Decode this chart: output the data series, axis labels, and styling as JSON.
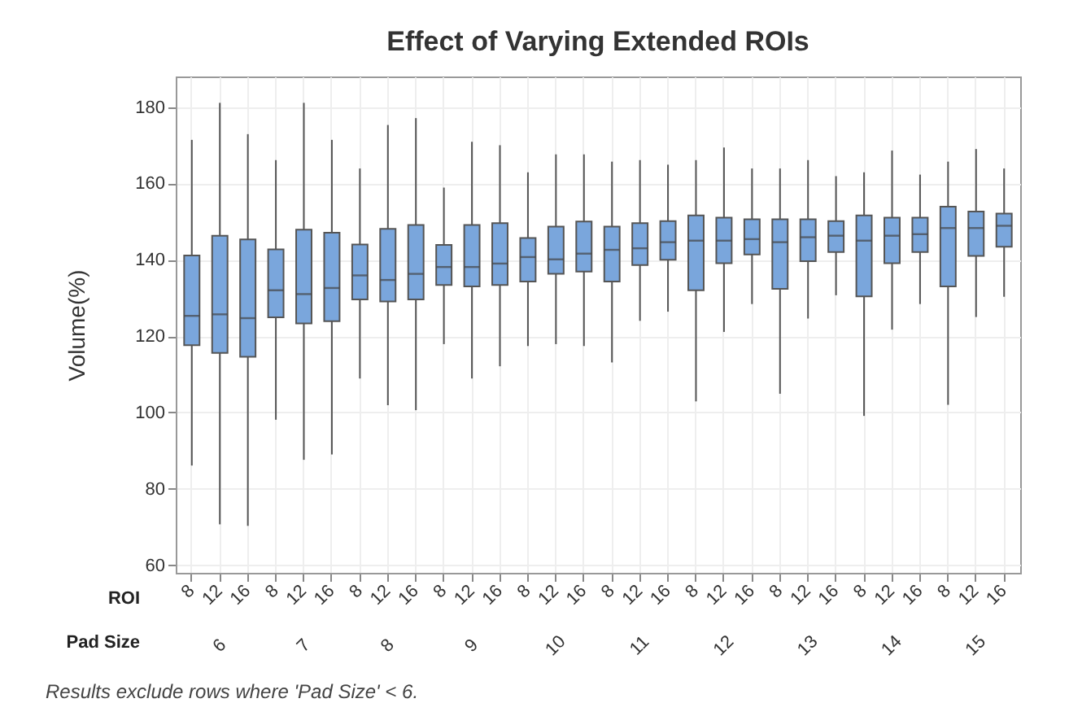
{
  "chart_data": {
    "type": "box",
    "title": "Effect of Varying Extended ROIs",
    "ylabel": "Volume(%)",
    "categories": [
      "8",
      "12",
      "16",
      "8",
      "12",
      "16",
      "8",
      "12",
      "16",
      "8",
      "12",
      "16",
      "8",
      "12",
      "16",
      "8",
      "12",
      "16",
      "8",
      "12",
      "16",
      "8",
      "12",
      "16",
      "8",
      "12",
      "16",
      "8",
      "12",
      "16"
    ],
    "ylim": [
      58,
      188
    ],
    "yticks": [
      60,
      80,
      100,
      120,
      140,
      160,
      180
    ],
    "grid": true,
    "annotations": [
      "ROI",
      "Pad Size",
      "6",
      "7",
      "8",
      "9",
      "10",
      "11",
      "12",
      "13",
      "14",
      "15",
      "Results exclude rows where  'Pad Size'  < 6."
    ],
    "series": [
      {
        "color": "#7aa6dc",
        "boxes": [
          {
            "low": 86.1,
            "q1": 117.6,
            "median": 125.3,
            "q3": 141.1,
            "high": 171.4
          },
          {
            "low": 70.7,
            "q1": 115.6,
            "median": 125.7,
            "q3": 146.3,
            "high": 181.1
          },
          {
            "low": 70.3,
            "q1": 114.6,
            "median": 124.7,
            "q3": 145.3,
            "high": 172.9
          },
          {
            "low": 98.1,
            "q1": 124.9,
            "median": 132,
            "q3": 142.7,
            "high": 166.1
          },
          {
            "low": 87.6,
            "q1": 123.3,
            "median": 131,
            "q3": 147.9,
            "high": 181.1
          },
          {
            "low": 89,
            "q1": 123.9,
            "median": 132.6,
            "q3": 147.1,
            "high": 171.4
          },
          {
            "low": 108.9,
            "q1": 129.6,
            "median": 135.9,
            "q3": 144,
            "high": 163.9
          },
          {
            "low": 101.9,
            "q1": 129.1,
            "median": 134.7,
            "q3": 148.1,
            "high": 175.3
          },
          {
            "low": 100.6,
            "q1": 129.6,
            "median": 136.3,
            "q3": 149.1,
            "high": 177.1
          },
          {
            "low": 117.9,
            "q1": 133.4,
            "median": 138.1,
            "q3": 143.9,
            "high": 158.9
          },
          {
            "low": 108.9,
            "q1": 133,
            "median": 138.1,
            "q3": 149.1,
            "high": 170.9
          },
          {
            "low": 112.1,
            "q1": 133.4,
            "median": 139,
            "q3": 149.6,
            "high": 170
          },
          {
            "low": 117.4,
            "q1": 134.3,
            "median": 140.7,
            "q3": 145.7,
            "high": 162.9
          },
          {
            "low": 117.9,
            "q1": 136.3,
            "median": 140.1,
            "q3": 148.7,
            "high": 167.6
          },
          {
            "low": 117.4,
            "q1": 136.9,
            "median": 141.6,
            "q3": 150,
            "high": 167.6
          },
          {
            "low": 113.1,
            "q1": 134.3,
            "median": 142.6,
            "q3": 148.7,
            "high": 165.7
          },
          {
            "low": 124,
            "q1": 138.6,
            "median": 143,
            "q3": 149.6,
            "high": 166.1
          },
          {
            "low": 126.4,
            "q1": 140,
            "median": 144.6,
            "q3": 150.1,
            "high": 164.9
          },
          {
            "low": 102.9,
            "q1": 132,
            "median": 145,
            "q3": 151.6,
            "high": 166.1
          },
          {
            "low": 121.1,
            "q1": 139.1,
            "median": 145,
            "q3": 151,
            "high": 169.4
          },
          {
            "low": 128.4,
            "q1": 141.4,
            "median": 145.4,
            "q3": 150.6,
            "high": 163.9
          },
          {
            "low": 104.9,
            "q1": 132.4,
            "median": 144.6,
            "q3": 150.6,
            "high": 163.9
          },
          {
            "low": 124.6,
            "q1": 139.6,
            "median": 145.9,
            "q3": 150.6,
            "high": 166.1
          },
          {
            "low": 130.7,
            "q1": 142,
            "median": 146.3,
            "q3": 150.1,
            "high": 161.9
          },
          {
            "low": 99.1,
            "q1": 130.4,
            "median": 145,
            "q3": 151.6,
            "high": 162.9
          },
          {
            "low": 121.7,
            "q1": 139.1,
            "median": 146.3,
            "q3": 151,
            "high": 168.6
          },
          {
            "low": 128.4,
            "q1": 142,
            "median": 146.7,
            "q3": 151,
            "high": 162.3
          },
          {
            "low": 102,
            "q1": 133,
            "median": 148.3,
            "q3": 153.9,
            "high": 165.7
          },
          {
            "low": 125,
            "q1": 141,
            "median": 148.3,
            "q3": 152.6,
            "high": 169
          },
          {
            "low": 130.3,
            "q1": 143.4,
            "median": 148.9,
            "q3": 152.1,
            "high": 163.9
          }
        ]
      }
    ]
  }
}
